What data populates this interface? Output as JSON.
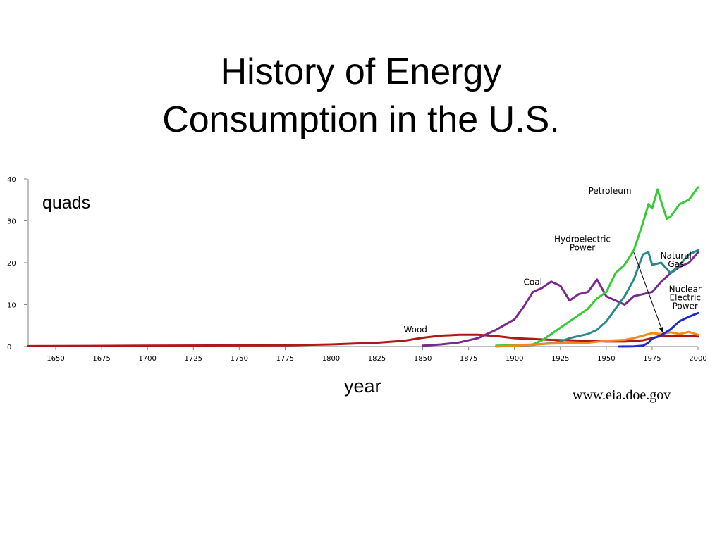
{
  "slide": {
    "title_line1": "History of Energy",
    "title_line2": "Consumption in the U.S.",
    "y_unit": "quads",
    "x_label": "year",
    "source": "www.eia.doe.gov"
  },
  "colors": {
    "axis": "#808080",
    "Petroleum": "#33cc33",
    "Natural Gas": "#2a8a8a",
    "Coal": "#7a2a8e",
    "Wood": "#b01818",
    "Hydroelectric Power": "#f08a1e",
    "Nuclear Electric Power": "#1e2ad0"
  },
  "chart_data": {
    "type": "line",
    "title": "History of Energy Consumption in the U.S.",
    "xlabel": "year",
    "ylabel": "quads",
    "xlim": [
      1635,
      2000
    ],
    "ylim": [
      0,
      40
    ],
    "x_ticks": [
      1650,
      1675,
      1700,
      1725,
      1750,
      1775,
      1800,
      1825,
      1850,
      1875,
      1900,
      1925,
      1950,
      1975,
      2000
    ],
    "y_ticks": [
      0,
      10,
      20,
      30,
      40
    ],
    "grid": false,
    "series": [
      {
        "name": "Wood",
        "x": [
          1635,
          1700,
          1775,
          1800,
          1825,
          1840,
          1850,
          1860,
          1870,
          1880,
          1890,
          1900,
          1910,
          1920,
          1930,
          1940,
          1950,
          1960,
          1970,
          1980,
          1990,
          2000
        ],
        "y": [
          0.1,
          0.2,
          0.3,
          0.5,
          0.9,
          1.4,
          2.1,
          2.6,
          2.8,
          2.8,
          2.5,
          2.0,
          1.8,
          1.6,
          1.5,
          1.4,
          1.2,
          1.2,
          1.5,
          2.5,
          2.6,
          2.4
        ]
      },
      {
        "name": "Coal",
        "x": [
          1850,
          1860,
          1870,
          1880,
          1890,
          1900,
          1905,
          1910,
          1915,
          1920,
          1925,
          1930,
          1935,
          1940,
          1945,
          1950,
          1955,
          1960,
          1965,
          1970,
          1975,
          1980,
          1985,
          1990,
          1995,
          2000
        ],
        "y": [
          0.2,
          0.5,
          1.0,
          2.0,
          4.0,
          6.5,
          9.5,
          13.0,
          14.0,
          15.5,
          14.5,
          11.0,
          12.5,
          13.0,
          16.0,
          12.0,
          11.0,
          10.0,
          12.0,
          12.5,
          13.0,
          15.5,
          17.5,
          19.0,
          20.0,
          22.5
        ]
      },
      {
        "name": "Petroleum",
        "x": [
          1890,
          1900,
          1910,
          1915,
          1920,
          1925,
          1930,
          1935,
          1940,
          1945,
          1950,
          1955,
          1960,
          1965,
          1970,
          1973,
          1975,
          1978,
          1980,
          1983,
          1985,
          1990,
          1995,
          2000
        ],
        "y": [
          0.2,
          0.3,
          0.5,
          1.5,
          3.0,
          4.5,
          6.0,
          7.5,
          9.0,
          11.5,
          13.0,
          17.5,
          19.5,
          23.0,
          29.5,
          34.0,
          33.0,
          37.5,
          34.5,
          30.5,
          31.0,
          34.0,
          35.0,
          38.0
        ]
      },
      {
        "name": "Natural Gas",
        "x": [
          1900,
          1910,
          1920,
          1925,
          1930,
          1935,
          1940,
          1945,
          1950,
          1955,
          1960,
          1965,
          1970,
          1973,
          1975,
          1980,
          1985,
          1990,
          1995,
          2000
        ],
        "y": [
          0.3,
          0.4,
          0.8,
          1.2,
          2.0,
          2.5,
          3.0,
          4.0,
          6.0,
          9.0,
          12.0,
          16.0,
          22.0,
          22.5,
          19.5,
          20.0,
          17.5,
          19.5,
          22.0,
          23.0
        ]
      },
      {
        "name": "Hydroelectric Power",
        "x": [
          1890,
          1900,
          1920,
          1940,
          1950,
          1960,
          1965,
          1970,
          1975,
          1980,
          1985,
          1990,
          1995,
          2000
        ],
        "y": [
          0.0,
          0.2,
          0.7,
          0.9,
          1.4,
          1.6,
          2.0,
          2.6,
          3.2,
          3.0,
          3.4,
          3.0,
          3.5,
          2.8
        ]
      },
      {
        "name": "Nuclear Electric Power",
        "x": [
          1957,
          1965,
          1970,
          1973,
          1975,
          1980,
          1985,
          1990,
          1995,
          2000
        ],
        "y": [
          0.0,
          0.05,
          0.2,
          0.9,
          1.9,
          2.7,
          4.1,
          6.1,
          7.1,
          8.0
        ]
      }
    ],
    "annotations": [
      {
        "text": "Petroleum",
        "lines": [
          "Petroleum"
        ],
        "x": 1952,
        "y": 36.5
      },
      {
        "text": "Hydroelectric Power",
        "lines": [
          "Hydroelectric",
          "Power"
        ],
        "x": 1937,
        "y": 25.0
      },
      {
        "text": "Natural Gas",
        "lines": [
          "Natural",
          "Gas"
        ],
        "x": 1988,
        "y": 21.0
      },
      {
        "text": "Coal",
        "lines": [
          "Coal"
        ],
        "x": 1910,
        "y": 14.7
      },
      {
        "text": "Nuclear Electric Power",
        "lines": [
          "Nuclear",
          "Electric",
          "Power"
        ],
        "x": 1993,
        "y": 13.0
      },
      {
        "text": "Wood",
        "lines": [
          "Wood"
        ],
        "x": 1846,
        "y": 3.4
      }
    ],
    "arrow": {
      "from": [
        1965,
        22.5
      ],
      "to": [
        1981,
        3.2
      ]
    }
  }
}
